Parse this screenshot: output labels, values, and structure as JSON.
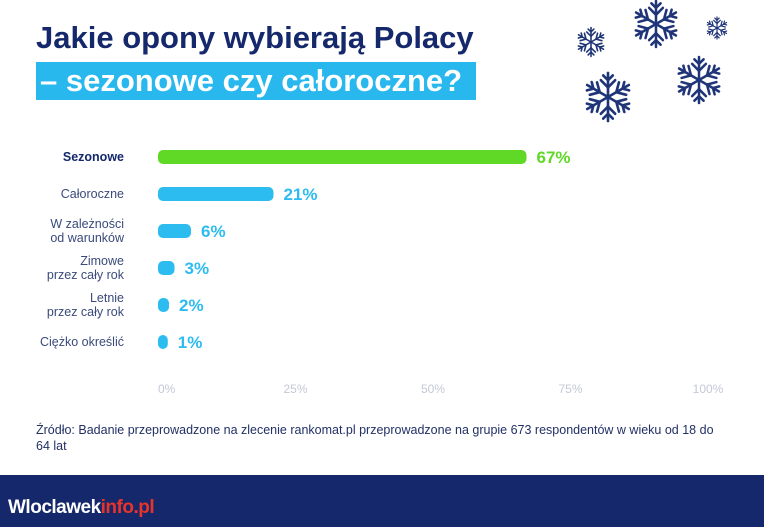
{
  "title": {
    "line1": "Jakie opony wybierają Polacy",
    "line2": "– sezonowe czy całoroczne?"
  },
  "chart_data": {
    "type": "bar",
    "orientation": "horizontal",
    "categories": [
      "Sezonowe",
      "Całoroczne",
      "W zależności\nod warunków",
      "Zimowe\nprzez cały rok",
      "Letnie\nprzez cały rok",
      "Ciężko określić"
    ],
    "values": [
      67,
      21,
      6,
      3,
      2,
      1
    ],
    "value_labels": [
      "67%",
      "21%",
      "6%",
      "3%",
      "2%",
      "1%"
    ],
    "xlim": [
      0,
      100
    ],
    "x_ticks": [
      "0%",
      "25%",
      "50%",
      "75%",
      "100%"
    ],
    "x_tick_values": [
      0,
      25,
      50,
      75,
      100
    ],
    "colors": [
      "#5fd925",
      "#2dbcf0",
      "#2dbcf0",
      "#2dbcf0",
      "#2dbcf0",
      "#2dbcf0"
    ],
    "highlight_label_color": "#14286b",
    "label_color": "#3a4a7a",
    "grid": false
  },
  "source": "Źródło: Badanie przeprowadzone na zlecenie rankomat.pl przeprowadzone na grupie 673 respondentów w wieku od 18 do 64 lat",
  "watermark": {
    "part1": "Wloclawek",
    "part2": "info.pl"
  },
  "decorations": {
    "icon": "snowflake-icon",
    "color": "#1f3578"
  }
}
